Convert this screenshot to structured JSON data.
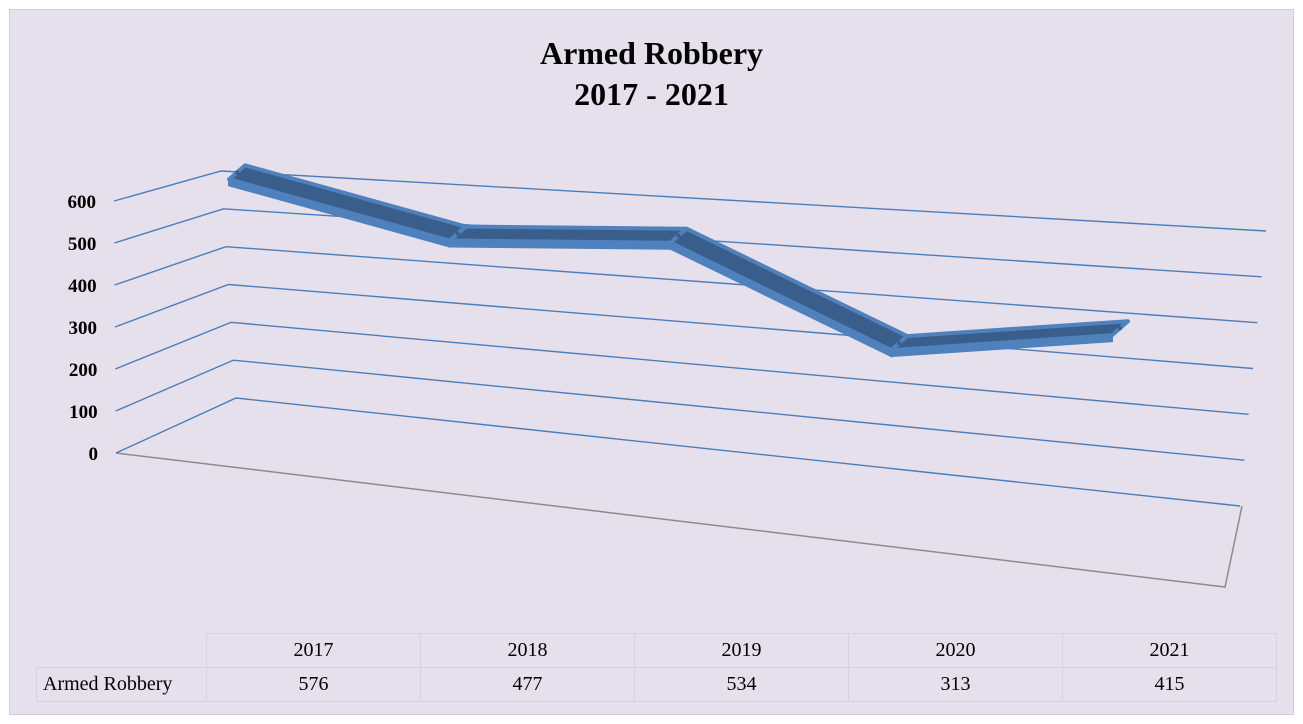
{
  "chart_data": {
    "type": "line",
    "title": "Armed Robbery",
    "subtitle": "2017 - 2021",
    "categories": [
      "2017",
      "2018",
      "2019",
      "2020",
      "2021"
    ],
    "series": [
      {
        "name": "Armed Robbery",
        "values": [
          576,
          477,
          534,
          313,
          415
        ]
      }
    ],
    "y_ticks": [
      "0",
      "100",
      "200",
      "300",
      "400",
      "500",
      "600"
    ],
    "ylim": [
      0,
      600
    ],
    "grid": true,
    "legend": "none",
    "data_table": true,
    "style": "3d",
    "colors": {
      "series": "#4f81bd",
      "series_dark": "#3a5e8c",
      "grid": "#4a7ebb",
      "floor": "#8c8c8c",
      "background": "#e6e0ec"
    }
  }
}
